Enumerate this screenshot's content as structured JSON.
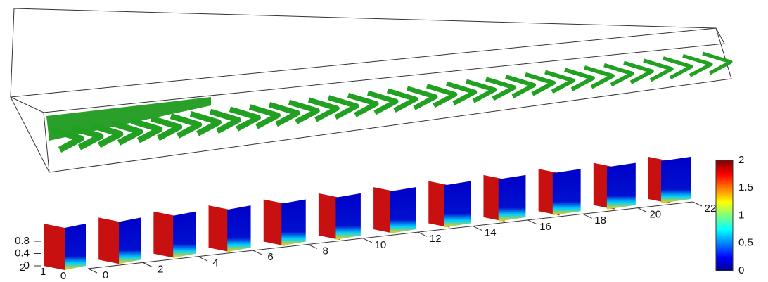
{
  "chart_data": {
    "type": "slices",
    "xlim": [
      0,
      22
    ],
    "xticks": [
      0,
      2,
      4,
      6,
      8,
      10,
      12,
      14,
      16,
      18,
      20,
      22
    ],
    "ylim": [
      0,
      2
    ],
    "yticks": [
      2,
      1,
      0
    ],
    "zlim": [
      0,
      0.8
    ],
    "zticks": [
      0.8,
      0.4,
      0
    ],
    "colorbar": {
      "lim": [
        0,
        2
      ],
      "ticks": [
        2,
        1.5,
        1,
        0.5,
        0
      ]
    }
  }
}
